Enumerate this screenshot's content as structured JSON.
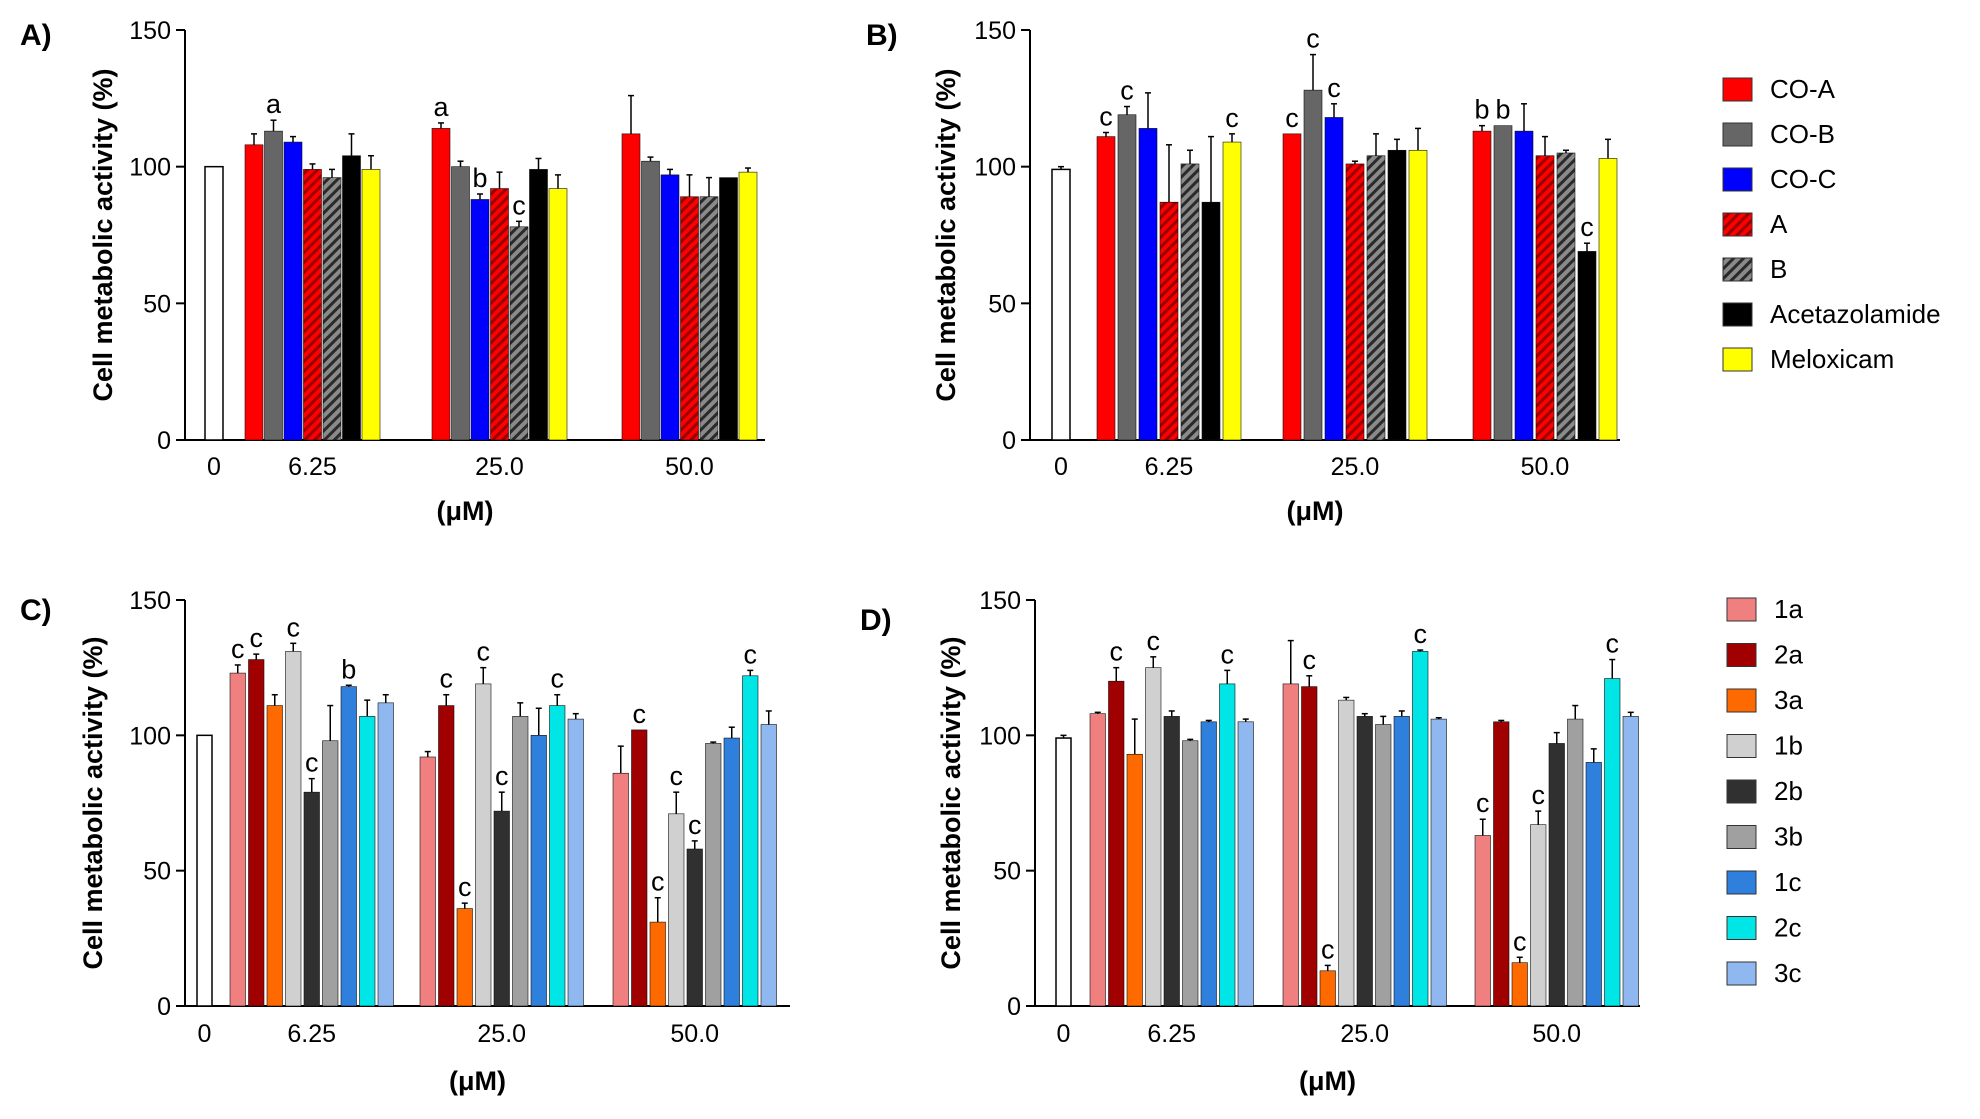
{
  "chart_data": [
    {
      "type": "bar",
      "panel_label": "A)",
      "title": "",
      "xlabel": "(μM)",
      "ylabel": "Cell metabolic activity (%)",
      "ylim": [
        0,
        150
      ],
      "yticks": [
        "0",
        "50",
        "100",
        "150"
      ],
      "control": {
        "label": "0",
        "value": 100,
        "err": 0
      },
      "categories": [
        "6.25",
        "25.0",
        "50.0"
      ],
      "series": [
        {
          "name": "CO-A",
          "values": [
            108,
            114,
            112
          ],
          "errors": [
            4,
            2,
            14
          ],
          "sig": [
            "",
            "a",
            ""
          ]
        },
        {
          "name": "CO-B",
          "values": [
            113,
            100,
            102
          ],
          "errors": [
            4,
            2,
            1.5
          ],
          "sig": [
            "a",
            "",
            ""
          ]
        },
        {
          "name": "CO-C",
          "values": [
            109,
            88,
            97
          ],
          "errors": [
            2,
            2,
            2
          ],
          "sig": [
            "",
            "b",
            ""
          ]
        },
        {
          "name": "A",
          "values": [
            99,
            92,
            89
          ],
          "errors": [
            2,
            6,
            8
          ],
          "sig": [
            "",
            "",
            ""
          ]
        },
        {
          "name": "B",
          "values": [
            96,
            78,
            89
          ],
          "errors": [
            3,
            2,
            7
          ],
          "sig": [
            "",
            "c",
            ""
          ]
        },
        {
          "name": "Acetazolamide",
          "values": [
            104,
            99,
            96
          ],
          "errors": [
            8,
            4,
            0
          ],
          "sig": [
            "",
            "",
            ""
          ]
        },
        {
          "name": "Meloxicam",
          "values": [
            99,
            92,
            98
          ],
          "errors": [
            5,
            5,
            1.5
          ],
          "sig": [
            "",
            "",
            ""
          ]
        }
      ]
    },
    {
      "type": "bar",
      "panel_label": "B)",
      "title": "",
      "xlabel": "(μM)",
      "ylabel": "Cell metabolic activity (%)",
      "ylim": [
        0,
        150
      ],
      "yticks": [
        "0",
        "50",
        "100",
        "150"
      ],
      "control": {
        "label": "0",
        "value": 99,
        "err": 1
      },
      "categories": [
        "6.25",
        "25.0",
        "50.0"
      ],
      "series": [
        {
          "name": "CO-A",
          "values": [
            111,
            112,
            113
          ],
          "errors": [
            1.5,
            0,
            2
          ],
          "sig": [
            "c",
            "c",
            "b"
          ]
        },
        {
          "name": "CO-B",
          "values": [
            119,
            128,
            115
          ],
          "errors": [
            3,
            13,
            0
          ],
          "sig": [
            "c",
            "c",
            "b"
          ]
        },
        {
          "name": "CO-C",
          "values": [
            114,
            118,
            113
          ],
          "errors": [
            13,
            5,
            10
          ],
          "sig": [
            "",
            "c",
            ""
          ]
        },
        {
          "name": "A",
          "values": [
            87,
            101,
            104
          ],
          "errors": [
            21,
            1,
            7
          ],
          "sig": [
            "",
            "",
            ""
          ]
        },
        {
          "name": "B",
          "values": [
            101,
            104,
            105
          ],
          "errors": [
            5,
            8,
            1
          ],
          "sig": [
            "",
            "",
            ""
          ]
        },
        {
          "name": "Acetazolamide",
          "values": [
            87,
            106,
            69
          ],
          "errors": [
            24,
            4,
            3
          ],
          "sig": [
            "",
            "",
            "c"
          ]
        },
        {
          "name": "Meloxicam",
          "values": [
            109,
            106,
            103
          ],
          "errors": [
            3,
            8,
            7
          ],
          "sig": [
            "c",
            "",
            ""
          ]
        }
      ],
      "legend": {
        "position": "right",
        "entries": [
          "CO-A",
          "CO-B",
          "CO-C",
          "A",
          "B",
          "Acetazolamide",
          "Meloxicam"
        ]
      }
    },
    {
      "type": "bar",
      "panel_label": "C)",
      "title": "",
      "xlabel": "(μM)",
      "ylabel": "Cell metabolic activity (%)",
      "ylim": [
        0,
        150
      ],
      "yticks": [
        "0",
        "50",
        "100",
        "150"
      ],
      "control": {
        "label": "0",
        "value": 100,
        "err": 0
      },
      "categories": [
        "6.25",
        "25.0",
        "50.0"
      ],
      "series": [
        {
          "name": "1a",
          "values": [
            123,
            92,
            86
          ],
          "errors": [
            3,
            2,
            10
          ],
          "sig": [
            "c",
            "",
            ""
          ]
        },
        {
          "name": "2a",
          "values": [
            128,
            111,
            102
          ],
          "errors": [
            2,
            4,
            0
          ],
          "sig": [
            "c",
            "c",
            "c"
          ]
        },
        {
          "name": "3a",
          "values": [
            111,
            36,
            31
          ],
          "errors": [
            4,
            2,
            9
          ],
          "sig": [
            "",
            "c",
            "c"
          ]
        },
        {
          "name": "1b",
          "values": [
            131,
            119,
            71
          ],
          "errors": [
            3,
            6,
            8
          ],
          "sig": [
            "c",
            "c",
            "c"
          ]
        },
        {
          "name": "2b",
          "values": [
            79,
            72,
            58
          ],
          "errors": [
            5,
            7,
            3
          ],
          "sig": [
            "c",
            "c",
            "c"
          ]
        },
        {
          "name": "3b",
          "values": [
            98,
            107,
            97
          ],
          "errors": [
            13,
            5,
            0.5
          ],
          "sig": [
            "",
            "",
            ""
          ]
        },
        {
          "name": "1c",
          "values": [
            118,
            100,
            99
          ],
          "errors": [
            0.5,
            10,
            4
          ],
          "sig": [
            "b",
            "",
            ""
          ]
        },
        {
          "name": "2c",
          "values": [
            107,
            111,
            122
          ],
          "errors": [
            6,
            4,
            2
          ],
          "sig": [
            "",
            "c",
            "c"
          ]
        },
        {
          "name": "3c",
          "values": [
            112,
            106,
            104
          ],
          "errors": [
            3,
            2,
            5
          ],
          "sig": [
            "",
            "",
            ""
          ]
        }
      ]
    },
    {
      "type": "bar",
      "panel_label": "D)",
      "title": "",
      "xlabel": "(μM)",
      "ylabel": "Cell metabolic activity (%)",
      "ylim": [
        0,
        150
      ],
      "yticks": [
        "0",
        "50",
        "100",
        "150"
      ],
      "control": {
        "label": "0",
        "value": 99,
        "err": 1
      },
      "categories": [
        "6.25",
        "25.0",
        "50.0"
      ],
      "series": [
        {
          "name": "1a",
          "values": [
            108,
            119,
            63
          ],
          "errors": [
            0.5,
            16,
            6
          ],
          "sig": [
            "",
            "",
            "c"
          ]
        },
        {
          "name": "2a",
          "values": [
            120,
            118,
            105
          ],
          "errors": [
            5,
            4,
            0.5
          ],
          "sig": [
            "c",
            "c",
            ""
          ]
        },
        {
          "name": "3a",
          "values": [
            93,
            13,
            16
          ],
          "errors": [
            13,
            2,
            2
          ],
          "sig": [
            "",
            "c",
            "c"
          ]
        },
        {
          "name": "1b",
          "values": [
            125,
            113,
            67
          ],
          "errors": [
            4,
            1,
            5
          ],
          "sig": [
            "c",
            "",
            "c"
          ]
        },
        {
          "name": "2b",
          "values": [
            107,
            107,
            97
          ],
          "errors": [
            2,
            1,
            4
          ],
          "sig": [
            "",
            "",
            ""
          ]
        },
        {
          "name": "3b",
          "values": [
            98,
            104,
            106
          ],
          "errors": [
            0.5,
            3,
            5
          ],
          "sig": [
            "",
            "",
            ""
          ]
        },
        {
          "name": "1c",
          "values": [
            105,
            107,
            90
          ],
          "errors": [
            0.5,
            2,
            5
          ],
          "sig": [
            "",
            "",
            ""
          ]
        },
        {
          "name": "2c",
          "values": [
            119,
            131,
            121
          ],
          "errors": [
            5,
            0.5,
            7
          ],
          "sig": [
            "c",
            "c",
            "c"
          ]
        },
        {
          "name": "3c",
          "values": [
            105,
            106,
            107
          ],
          "errors": [
            1,
            0.5,
            1.5
          ],
          "sig": [
            "",
            "",
            ""
          ]
        }
      ],
      "legend": {
        "position": "right",
        "entries": [
          "1a",
          "2a",
          "3a",
          "1b",
          "2b",
          "3b",
          "1c",
          "2c",
          "3c"
        ]
      }
    }
  ],
  "series_colors": {
    "CO-A": "#ff0000",
    "CO-B": "#666666",
    "CO-C": "#0000ff",
    "A": "#ff2a2a",
    "B": "#777777",
    "Acetazolamide": "#000000",
    "Meloxicam": "#ffff00",
    "1a": "#f08080",
    "2a": "#a00000",
    "3a": "#ff6a00",
    "1b": "#d0d0d0",
    "2b": "#303030",
    "3b": "#a0a0a0",
    "1c": "#2f7fdc",
    "2c": "#00e5e5",
    "3c": "#8fb8f0"
  },
  "hatched_series": [
    "A",
    "B"
  ]
}
